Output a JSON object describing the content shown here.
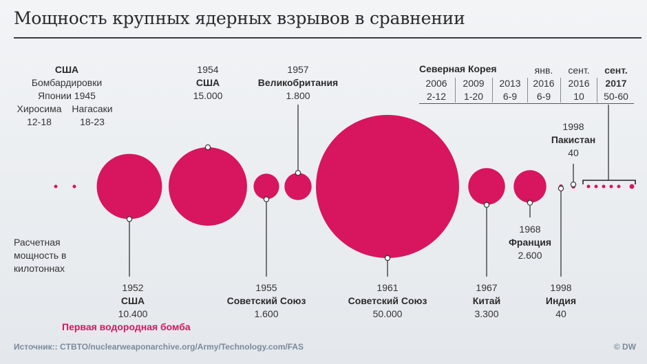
{
  "title": "Мощность крупных ядерных взрывов в сравнении",
  "note": [
    "Расчетная",
    "мощность в",
    "килотоннах"
  ],
  "first_hydrogen_bomb": "Первая водородная бомба",
  "source": "Источник:: CTBTO/nuclearweaponarchive.org/Army/Technology.com/FAS",
  "credit": "© DW",
  "colors": {
    "bubble": "#d8155f",
    "accent_text": "#d8155f",
    "line": "#333333"
  },
  "usa_1945": {
    "country": "США",
    "event": [
      "Бомбардировки",
      "Японии 1945"
    ],
    "hiroshima": [
      "Хиросима",
      "12-18"
    ],
    "nagasaki": [
      "Нагасаки",
      "18-23"
    ]
  },
  "labels": [
    {
      "year": "1952",
      "country": "США",
      "yield": "10.400"
    },
    {
      "year": "1954",
      "country": "США",
      "yield": "15.000"
    },
    {
      "year": "1955",
      "country": "Советский Союз",
      "yield": "1.600"
    },
    {
      "year": "1957",
      "country": "Великобритания",
      "yield": "1.800"
    },
    {
      "year": "1961",
      "country": "Советский Союз",
      "yield": "50.000"
    },
    {
      "year": "1967",
      "country": "Китай",
      "yield": "3.300"
    },
    {
      "year": "1968",
      "country": "Франция",
      "yield": "2.600"
    },
    {
      "year": "1998",
      "country": "Индия",
      "yield": "40"
    },
    {
      "year": "1998",
      "country": "Пакистан",
      "yield": "40"
    }
  ],
  "north_korea": {
    "title": "Северная Корея",
    "tests": [
      {
        "date": "2006",
        "yield": "2-12"
      },
      {
        "date": "2009",
        "yield": "1-20"
      },
      {
        "date": "2013",
        "yield": "6-9"
      },
      {
        "date": "янв. 2016",
        "month": "янв.",
        "year": "2016",
        "yield": "6-9"
      },
      {
        "date": "сент. 2016",
        "month": "сент.",
        "year": "2016",
        "yield": "10"
      },
      {
        "date": "сент. 2017",
        "month": "сент.",
        "year": "2017",
        "yield": "50-60"
      }
    ]
  },
  "chart_data": {
    "type": "bubble",
    "title": "Мощность крупных ядерных взрывов в сравнении",
    "unit": "Расчетная мощность в килотоннах",
    "points": [
      {
        "label": "Хиросима",
        "year": 1945,
        "country": "США",
        "yield_min": 12,
        "yield_max": 18
      },
      {
        "label": "Нагасаки",
        "year": 1945,
        "country": "США",
        "yield_min": 18,
        "yield_max": 23
      },
      {
        "label": "США 1952",
        "year": 1952,
        "country": "США",
        "yield": 10400
      },
      {
        "label": "США 1954",
        "year": 1954,
        "country": "США",
        "yield": 15000
      },
      {
        "label": "Советский Союз 1955",
        "year": 1955,
        "country": "Советский Союз",
        "yield": 1600
      },
      {
        "label": "Великобритания 1957",
        "year": 1957,
        "country": "Великобритания",
        "yield": 1800
      },
      {
        "label": "Советский Союз 1961",
        "year": 1961,
        "country": "Советский Союз",
        "yield": 50000
      },
      {
        "label": "Китай 1967",
        "year": 1967,
        "country": "Китай",
        "yield": 3300
      },
      {
        "label": "Франция 1968",
        "year": 1968,
        "country": "Франция",
        "yield": 2600
      },
      {
        "label": "Индия 1998",
        "year": 1998,
        "country": "Индия",
        "yield": 40
      },
      {
        "label": "Пакистан 1998",
        "year": 1998,
        "country": "Пакистан",
        "yield": 40
      },
      {
        "label": "Северная Корея 2006",
        "year": 2006,
        "country": "Северная Корея",
        "yield_min": 2,
        "yield_max": 12
      },
      {
        "label": "Северная Корея 2009",
        "year": 2009,
        "country": "Северная Корея",
        "yield_min": 1,
        "yield_max": 20
      },
      {
        "label": "Северная Корея 2013",
        "year": 2013,
        "country": "Северная Корея",
        "yield_min": 6,
        "yield_max": 9
      },
      {
        "label": "Северная Корея янв. 2016",
        "year": 2016,
        "country": "Северная Корея",
        "yield_min": 6,
        "yield_max": 9
      },
      {
        "label": "Северная Корея сент. 2016",
        "year": 2016,
        "country": "Северная Корея",
        "yield": 10
      },
      {
        "label": "Северная Корея сент. 2017",
        "year": 2017,
        "country": "Северная Корея",
        "yield_min": 50,
        "yield_max": 60
      }
    ]
  }
}
